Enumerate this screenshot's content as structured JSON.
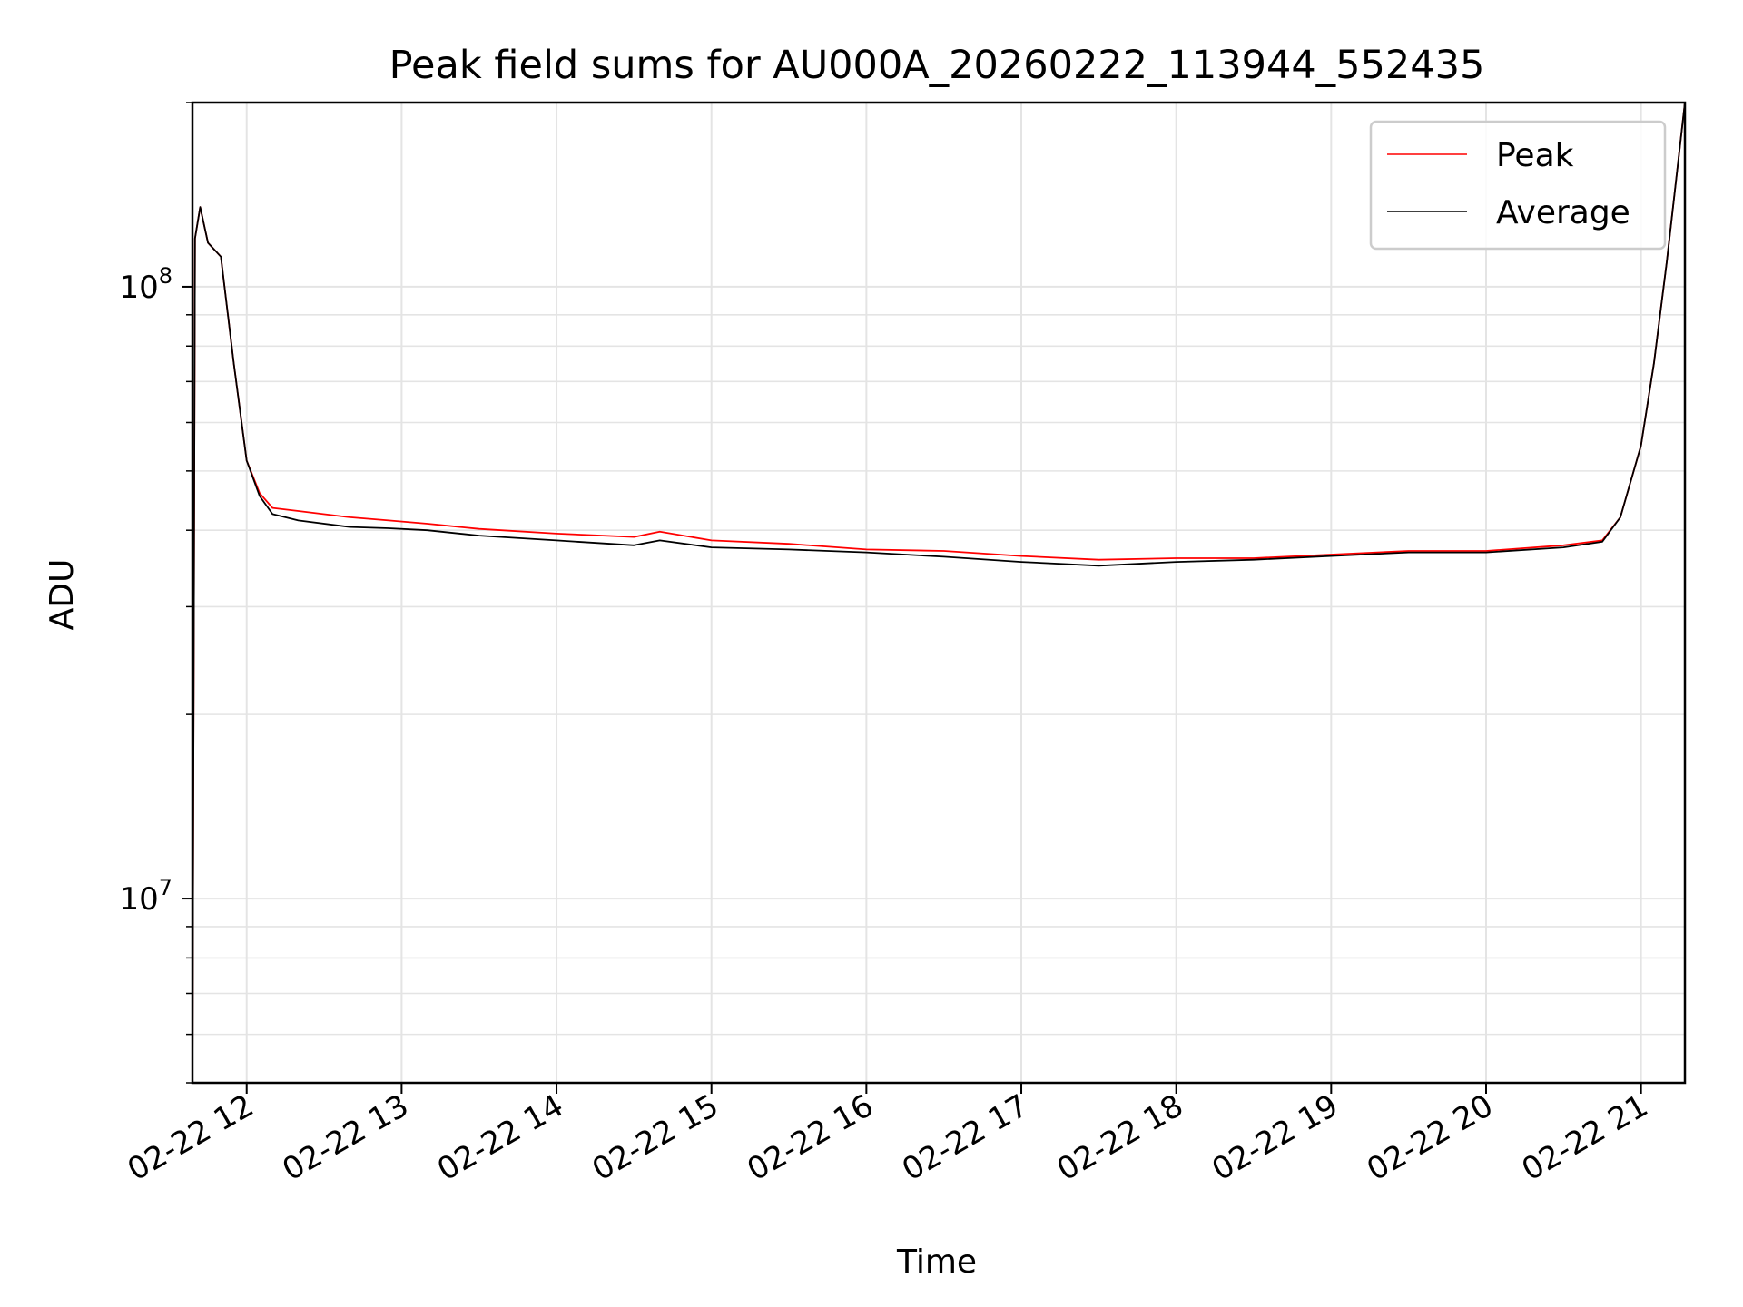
{
  "chart_data": {
    "type": "line",
    "title": "Peak field sums for AU000A_20260222_113944_552435",
    "xlabel": "Time",
    "ylabel": "ADU",
    "x_scale": "time",
    "y_scale": "log",
    "xlim": [
      "2026-02-22 11:39",
      "2026-02-22 21:17"
    ],
    "ylim": [
      5000000,
      200000000
    ],
    "grid": true,
    "legend_position": "top-right",
    "x_ticks": [
      {
        "t": "2026-02-22 12:00",
        "label": "02-22 12"
      },
      {
        "t": "2026-02-22 13:00",
        "label": "02-22 13"
      },
      {
        "t": "2026-02-22 14:00",
        "label": "02-22 14"
      },
      {
        "t": "2026-02-22 15:00",
        "label": "02-22 15"
      },
      {
        "t": "2026-02-22 16:00",
        "label": "02-22 16"
      },
      {
        "t": "2026-02-22 17:00",
        "label": "02-22 17"
      },
      {
        "t": "2026-02-22 18:00",
        "label": "02-22 18"
      },
      {
        "t": "2026-02-22 19:00",
        "label": "02-22 19"
      },
      {
        "t": "2026-02-22 20:00",
        "label": "02-22 20"
      },
      {
        "t": "2026-02-22 21:00",
        "label": "02-22 21"
      }
    ],
    "y_ticks": [
      {
        "value": 10000000,
        "base": "10",
        "exp": "7"
      },
      {
        "value": 100000000,
        "base": "10",
        "exp": "8"
      }
    ],
    "series": [
      {
        "name": "Peak",
        "color": "#ff0000",
        "points": [
          [
            "2026-02-22 11:39",
            5000000
          ],
          [
            "2026-02-22 11:40",
            120000000
          ],
          [
            "2026-02-22 11:42",
            135000000
          ],
          [
            "2026-02-22 11:45",
            118000000
          ],
          [
            "2026-02-22 11:50",
            112000000
          ],
          [
            "2026-02-22 11:55",
            75000000
          ],
          [
            "2026-02-22 12:00",
            52000000
          ],
          [
            "2026-02-22 12:05",
            46000000
          ],
          [
            "2026-02-22 12:10",
            43500000
          ],
          [
            "2026-02-22 12:20",
            43000000
          ],
          [
            "2026-02-22 12:40",
            42000000
          ],
          [
            "2026-02-22 12:55",
            41500000
          ],
          [
            "2026-02-22 13:10",
            41000000
          ],
          [
            "2026-02-22 13:30",
            40200000
          ],
          [
            "2026-02-22 14:00",
            39500000
          ],
          [
            "2026-02-22 14:30",
            39000000
          ],
          [
            "2026-02-22 14:40",
            39800000
          ],
          [
            "2026-02-22 15:00",
            38500000
          ],
          [
            "2026-02-22 15:30",
            38000000
          ],
          [
            "2026-02-22 16:00",
            37200000
          ],
          [
            "2026-02-22 16:30",
            37000000
          ],
          [
            "2026-02-22 17:00",
            36300000
          ],
          [
            "2026-02-22 17:30",
            35800000
          ],
          [
            "2026-02-22 18:00",
            36000000
          ],
          [
            "2026-02-22 18:30",
            36000000
          ],
          [
            "2026-02-22 19:00",
            36500000
          ],
          [
            "2026-02-22 19:30",
            37000000
          ],
          [
            "2026-02-22 20:00",
            37000000
          ],
          [
            "2026-02-22 20:30",
            37800000
          ],
          [
            "2026-02-22 20:45",
            38500000
          ],
          [
            "2026-02-22 20:52",
            42000000
          ],
          [
            "2026-02-22 21:00",
            55000000
          ],
          [
            "2026-02-22 21:05",
            75000000
          ],
          [
            "2026-02-22 21:10",
            110000000
          ],
          [
            "2026-02-22 21:17",
            200000000
          ]
        ]
      },
      {
        "name": "Average",
        "color": "#000000",
        "points": [
          [
            "2026-02-22 11:39",
            5000000
          ],
          [
            "2026-02-22 11:40",
            120000000
          ],
          [
            "2026-02-22 11:42",
            135000000
          ],
          [
            "2026-02-22 11:45",
            118000000
          ],
          [
            "2026-02-22 11:50",
            112000000
          ],
          [
            "2026-02-22 11:55",
            75000000
          ],
          [
            "2026-02-22 12:00",
            52000000
          ],
          [
            "2026-02-22 12:05",
            45500000
          ],
          [
            "2026-02-22 12:10",
            42500000
          ],
          [
            "2026-02-22 12:20",
            41500000
          ],
          [
            "2026-02-22 12:40",
            40500000
          ],
          [
            "2026-02-22 12:55",
            40300000
          ],
          [
            "2026-02-22 13:10",
            40000000
          ],
          [
            "2026-02-22 13:30",
            39200000
          ],
          [
            "2026-02-22 14:00",
            38500000
          ],
          [
            "2026-02-22 14:30",
            37800000
          ],
          [
            "2026-02-22 14:40",
            38500000
          ],
          [
            "2026-02-22 15:00",
            37500000
          ],
          [
            "2026-02-22 15:30",
            37200000
          ],
          [
            "2026-02-22 16:00",
            36800000
          ],
          [
            "2026-02-22 16:30",
            36200000
          ],
          [
            "2026-02-22 17:00",
            35500000
          ],
          [
            "2026-02-22 17:30",
            35000000
          ],
          [
            "2026-02-22 18:00",
            35500000
          ],
          [
            "2026-02-22 18:30",
            35800000
          ],
          [
            "2026-02-22 19:00",
            36300000
          ],
          [
            "2026-02-22 19:30",
            36800000
          ],
          [
            "2026-02-22 20:00",
            36800000
          ],
          [
            "2026-02-22 20:30",
            37500000
          ],
          [
            "2026-02-22 20:45",
            38300000
          ],
          [
            "2026-02-22 20:52",
            42000000
          ],
          [
            "2026-02-22 21:00",
            55000000
          ],
          [
            "2026-02-22 21:05",
            75000000
          ],
          [
            "2026-02-22 21:10",
            110000000
          ],
          [
            "2026-02-22 21:17",
            200000000
          ]
        ]
      }
    ]
  }
}
